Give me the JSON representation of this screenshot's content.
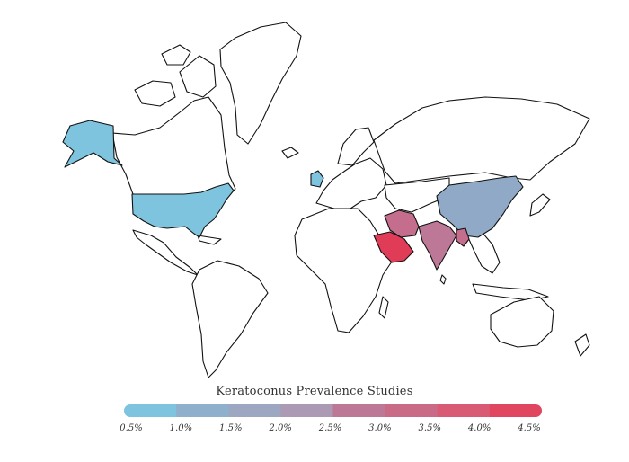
{
  "title": "Keratoconus Prevalence Studies",
  "legend": {
    "ticks": [
      "0.5%",
      "1.0%",
      "1.5%",
      "2.0%",
      "2.5%",
      "3.0%",
      "3.5%",
      "4.0%",
      "4.5%"
    ],
    "colors": [
      "#7fc4de",
      "#8fb0cc",
      "#9ea7c2",
      "#ac99b4",
      "#bc7896",
      "#c96b87",
      "#d85a74",
      "#e14660"
    ]
  },
  "highlighted_regions": [
    {
      "name": "Alaska",
      "color": "#7fc4de"
    },
    {
      "name": "United States",
      "color": "#7fc4de"
    },
    {
      "name": "United Kingdom",
      "color": "#7fc4de"
    },
    {
      "name": "China",
      "color": "#8fa9c6"
    },
    {
      "name": "Iran",
      "color": "#c46d8c"
    },
    {
      "name": "Saudi Arabia",
      "color": "#e03c57"
    },
    {
      "name": "India",
      "color": "#bc7896"
    },
    {
      "name": "Myanmar",
      "color": "#c46d8c"
    }
  ]
}
